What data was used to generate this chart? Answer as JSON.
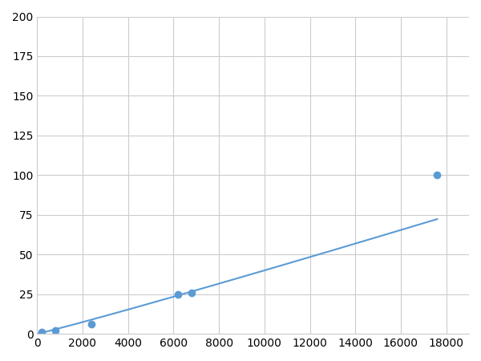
{
  "x": [
    200,
    800,
    2400,
    6200,
    6800,
    17600
  ],
  "y": [
    1,
    2,
    6,
    25,
    26,
    100
  ],
  "line_color": "#5b9bd5",
  "marker_color": "#5b9bd5",
  "marker_size": 6,
  "line_width": 1.5,
  "xlim": [
    0,
    19000
  ],
  "ylim": [
    0,
    200
  ],
  "xticks": [
    0,
    2000,
    4000,
    6000,
    8000,
    10000,
    12000,
    14000,
    16000,
    18000
  ],
  "yticks": [
    0,
    25,
    50,
    75,
    100,
    125,
    150,
    175,
    200
  ],
  "grid_color": "#cccccc",
  "background_color": "#ffffff",
  "tick_fontsize": 10
}
